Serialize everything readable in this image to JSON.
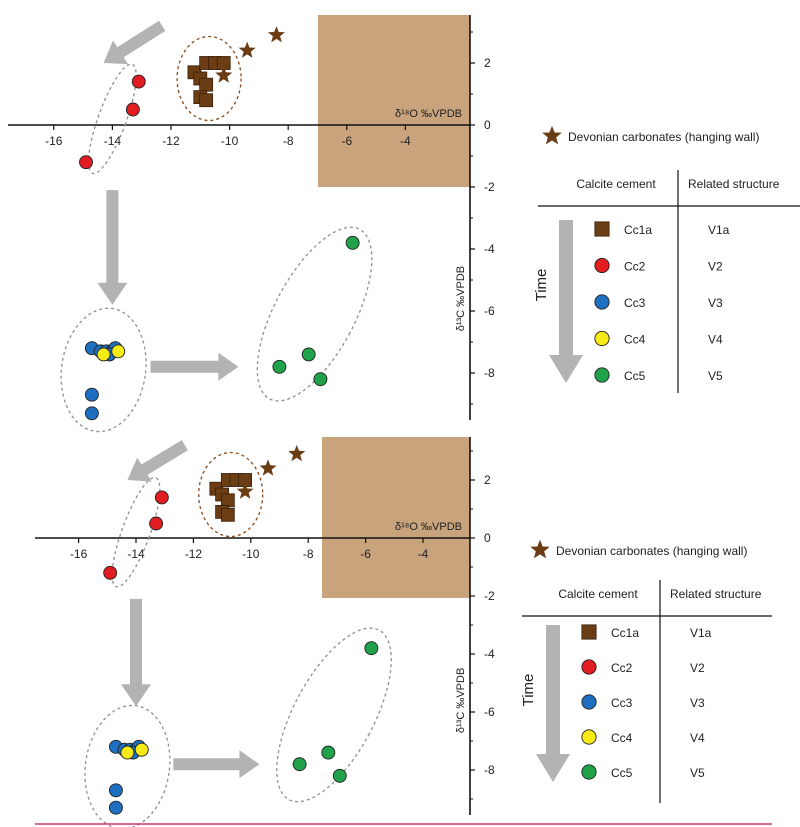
{
  "colors": {
    "Cc1a": "#6b3d14",
    "Cc2": "#e11d22",
    "Cc3": "#1e6fc0",
    "Cc4": "#f6ea17",
    "Cc5": "#1fa24a",
    "star": "#6b3d14",
    "box": "#c9a37c",
    "arrow": "#b3b3b3",
    "ellipse": "#8f8f8f",
    "ellipse_brown": "#8a4b1d",
    "divider": "#c0145a"
  },
  "chart_data": [
    {
      "type": "scatter",
      "xlabel": "δ¹⁸O ‰VPDB",
      "ylabel": "δ¹³C ‰VPDB",
      "x_ticks": [
        "-16",
        "-14",
        "-12",
        "-10",
        "-8",
        "-6",
        "-4"
      ],
      "y_ticks": [
        "2",
        "0",
        "-2",
        "-4",
        "-6",
        "-8"
      ],
      "series": [
        {
          "name": "Cc1a",
          "marker": "square",
          "points": [
            [
              -11.2,
              1.7
            ],
            [
              -10.8,
              2.0
            ],
            [
              -10.5,
              2.0
            ],
            [
              -10.2,
              2.0
            ],
            [
              -11.0,
              1.5
            ],
            [
              -10.8,
              1.3
            ],
            [
              -11.0,
              0.9
            ],
            [
              -10.8,
              0.8
            ]
          ]
        },
        {
          "name": "Cc2",
          "marker": "circle",
          "points": [
            [
              -13.1,
              1.4
            ],
            [
              -13.3,
              0.5
            ],
            [
              -14.9,
              -1.2
            ]
          ]
        },
        {
          "name": "Cc3",
          "marker": "circle",
          "points": [
            [
              -14.7,
              -7.2
            ],
            [
              -14.4,
              -7.3
            ],
            [
              -14.2,
              -7.3
            ],
            [
              -14.0,
              -7.3
            ],
            [
              -13.9,
              -7.2
            ],
            [
              -14.1,
              -7.4
            ],
            [
              -14.7,
              -8.7
            ],
            [
              -14.7,
              -9.3
            ]
          ]
        },
        {
          "name": "Cc4",
          "marker": "circle",
          "points": [
            [
              -13.8,
              -7.3
            ],
            [
              -14.3,
              -7.4
            ]
          ]
        },
        {
          "name": "Cc5",
          "marker": "circle",
          "points": [
            [
              -5.8,
              -3.8
            ],
            [
              -7.3,
              -7.4
            ],
            [
              -8.3,
              -7.8
            ],
            [
              -6.9,
              -8.2
            ]
          ]
        },
        {
          "name": "Devonian carbonates (hanging wall)",
          "marker": "star",
          "points": [
            [
              -8.4,
              2.9
            ],
            [
              -9.4,
              2.4
            ],
            [
              -10.2,
              1.6
            ]
          ]
        }
      ],
      "shaded_region": {
        "x_range": [
          -7,
          -2.4
        ],
        "y_range": [
          -2,
          3.5
        ]
      }
    },
    {
      "type": "scatter",
      "xlabel": "δ¹⁸O ‰VPDB",
      "ylabel": "δ¹³C ‰VPDB",
      "x_ticks": [
        "-16",
        "-14",
        "-12",
        "-10",
        "-8",
        "-6",
        "-4"
      ],
      "y_ticks": [
        "2",
        "0",
        "-2",
        "-4",
        "-6",
        "-8"
      ],
      "series": [
        {
          "name": "Cc1a",
          "marker": "square",
          "points": [
            [
              -11.2,
              1.7
            ],
            [
              -10.8,
              2.0
            ],
            [
              -10.5,
              2.0
            ],
            [
              -10.2,
              2.0
            ],
            [
              -11.0,
              1.5
            ],
            [
              -10.8,
              1.3
            ],
            [
              -11.0,
              0.9
            ],
            [
              -10.8,
              0.8
            ]
          ]
        },
        {
          "name": "Cc2",
          "marker": "circle",
          "points": [
            [
              -13.1,
              1.4
            ],
            [
              -13.3,
              0.5
            ],
            [
              -14.9,
              -1.2
            ]
          ]
        },
        {
          "name": "Cc3",
          "marker": "circle",
          "points": [
            [
              -14.7,
              -7.2
            ],
            [
              -14.4,
              -7.3
            ],
            [
              -14.2,
              -7.3
            ],
            [
              -14.0,
              -7.3
            ],
            [
              -13.9,
              -7.2
            ],
            [
              -14.1,
              -7.4
            ],
            [
              -14.7,
              -8.7
            ],
            [
              -14.7,
              -9.3
            ]
          ]
        },
        {
          "name": "Cc4",
          "marker": "circle",
          "points": [
            [
              -13.8,
              -7.3
            ],
            [
              -14.3,
              -7.4
            ]
          ]
        },
        {
          "name": "Cc5",
          "marker": "circle",
          "points": [
            [
              -5.8,
              -3.8
            ],
            [
              -7.3,
              -7.4
            ],
            [
              -8.3,
              -7.8
            ],
            [
              -6.9,
              -8.2
            ]
          ]
        },
        {
          "name": "Devonian carbonates (hanging wall)",
          "marker": "star",
          "points": [
            [
              -8.4,
              2.9
            ],
            [
              -9.4,
              2.4
            ],
            [
              -10.2,
              1.6
            ]
          ]
        }
      ],
      "shaded_region": {
        "x_range": [
          -7,
          -2.4
        ],
        "y_range": [
          -2,
          3.5
        ]
      }
    }
  ],
  "legend": {
    "star_label": "Devonian carbonates (hanging wall)",
    "col1_header": "Calcite cement",
    "col2_header": "Related structure",
    "time_label": "Time",
    "rows": [
      {
        "cement": "Cc1a",
        "structure": "V1a",
        "marker": "square"
      },
      {
        "cement": "Cc2",
        "structure": "V2",
        "marker": "circle"
      },
      {
        "cement": "Cc3",
        "structure": "V3",
        "marker": "circle"
      },
      {
        "cement": "Cc4",
        "structure": "V4",
        "marker": "circle"
      },
      {
        "cement": "Cc5",
        "structure": "V5",
        "marker": "circle"
      }
    ]
  }
}
